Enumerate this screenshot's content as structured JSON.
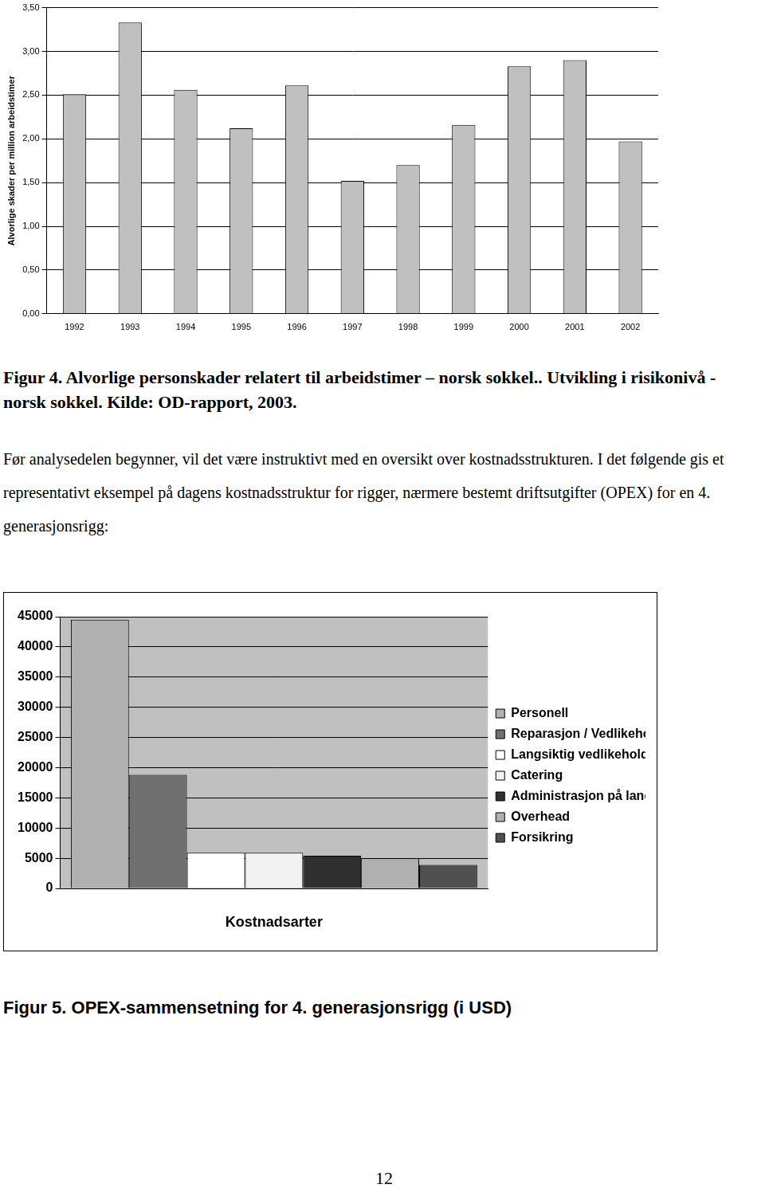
{
  "chart_data": [
    {
      "type": "bar",
      "y_label": "Alvorlige skader per million arbeidstimer",
      "categories": [
        "1992",
        "1993",
        "1994",
        "1995",
        "1996",
        "1997",
        "1998",
        "1999",
        "2000",
        "2001",
        "2002"
      ],
      "values": [
        2.51,
        3.33,
        2.56,
        2.12,
        2.61,
        1.52,
        1.7,
        2.16,
        2.83,
        2.9,
        1.97
      ],
      "color": "#c0c0c0",
      "ylim": [
        0,
        3.5
      ],
      "yticks": [
        {
          "value": 0,
          "label": "0,00"
        },
        {
          "value": 0.5,
          "label": "0,50"
        },
        {
          "value": 1,
          "label": "1,00"
        },
        {
          "value": 1.5,
          "label": "1,50"
        },
        {
          "value": 2,
          "label": "2,00"
        },
        {
          "value": 2.5,
          "label": "2,50"
        },
        {
          "value": 3,
          "label": "3,00"
        },
        {
          "value": 3.5,
          "label": "3,50"
        }
      ],
      "grid": true
    },
    {
      "type": "bar",
      "x_label": "Kostnadsarter",
      "categories": [
        null
      ],
      "series": [
        {
          "name": "Personell",
          "color": "#b0b0b0",
          "values": [
            44500
          ]
        },
        {
          "name": "Reparasjon / Vedlikehold",
          "color": "#707070",
          "values": [
            18800
          ]
        },
        {
          "name": "Langsiktig vedlikehold",
          "color": "#ffffff",
          "values": [
            5900
          ]
        },
        {
          "name": "Catering",
          "color": "#f2f2f2",
          "values": [
            5900
          ]
        },
        {
          "name": "Administrasjon på land",
          "color": "#303030",
          "values": [
            5400
          ]
        },
        {
          "name": "Overhead",
          "color": "#b0b0b0",
          "values": [
            5000
          ]
        },
        {
          "name": "Forsikring",
          "color": "#505050",
          "values": [
            3900
          ]
        }
      ],
      "ylim": [
        0,
        45000
      ],
      "yticks": [
        0,
        5000,
        10000,
        15000,
        20000,
        25000,
        30000,
        35000,
        40000,
        45000
      ],
      "grid": true,
      "legend": "right"
    }
  ],
  "text": {
    "figure4_caption": "Figur 4. Alvorlige personskader relatert til arbeidstimer – norsk sokkel.. Utvikling i risikonivå - norsk sokkel. Kilde: OD-rapport, 2003.",
    "paragraph": "Før analysedelen begynner, vil det være instruktivt med en oversikt over kostnadsstrukturen. I det følgende gis et representativt eksempel på dagens kostnadsstruktur for rigger, nærmere bestemt driftsutgifter (OPEX) for en 4. generasjonsrigg:",
    "figure5_caption": "Figur 5. OPEX-sammensetning for 4. generasjonsrigg (i USD)",
    "page_number": 12
  }
}
